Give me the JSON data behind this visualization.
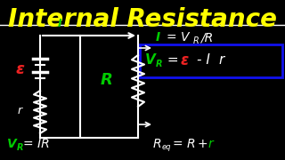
{
  "title": "Internal Resistance",
  "title_color": "#FFFF00",
  "title_fontsize": 20,
  "bg_color": "#000000",
  "line_color": "#FFFFFF",
  "green_color": "#00CC00",
  "red_color": "#EE2222",
  "yellow_color": "#FFFF00",
  "blue_box_color": "#1111EE",
  "eps_label": "ε",
  "r_label": "r",
  "R_label": "R",
  "I_label": "I"
}
